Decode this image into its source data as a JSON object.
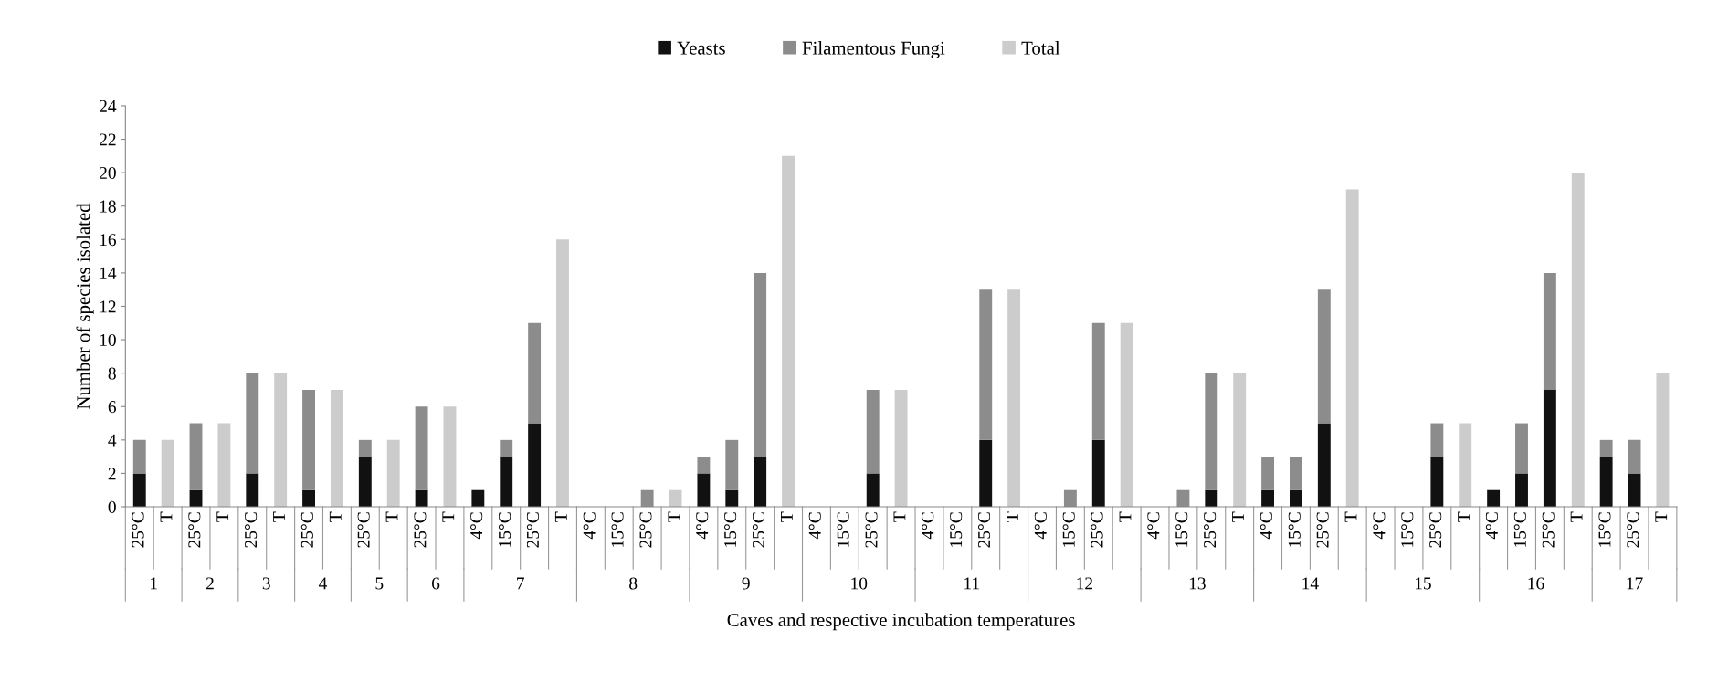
{
  "chart_data": {
    "type": "bar",
    "stacked": true,
    "ylabel": "Number of species isolated",
    "xlabel": "Caves and respective incubation temperatures",
    "categories": [
      "25°C",
      "T",
      "25°C",
      "T",
      "25°C",
      "T",
      "25°C",
      "T",
      "25°C",
      "T",
      "25°C",
      "T",
      "4°C",
      "15°C",
      "25°C",
      "T",
      "4°C",
      "15°C",
      "25°C",
      "T",
      "4°C",
      "15°C",
      "25°C",
      "T",
      "4°C",
      "15°C",
      "25°C",
      "T",
      "4°C",
      "15°C",
      "25°C",
      "T",
      "4°C",
      "15°C",
      "25°C",
      "T",
      "4°C",
      "15°C",
      "25°C",
      "T",
      "4°C",
      "15°C",
      "25°C",
      "T",
      "4°C",
      "15°C",
      "25°C",
      "T",
      "4°C",
      "15°C",
      "25°C",
      "T",
      "15°C",
      "25°C",
      "T"
    ],
    "series": [
      {
        "name": "Yeasts",
        "color": "#111111",
        "values": [
          2,
          null,
          1,
          null,
          2,
          null,
          1,
          null,
          3,
          null,
          1,
          null,
          1,
          3,
          5,
          null,
          0,
          0,
          0,
          null,
          2,
          1,
          3,
          null,
          0,
          0,
          2,
          null,
          0,
          0,
          4,
          null,
          0,
          0,
          4,
          null,
          0,
          0,
          1,
          null,
          1,
          1,
          5,
          null,
          0,
          0,
          3,
          null,
          1,
          2,
          7,
          null,
          3,
          2,
          null
        ]
      },
      {
        "name": "Filamentous Fungi",
        "color": "#8c8c8c",
        "values": [
          2,
          null,
          4,
          null,
          6,
          null,
          6,
          null,
          1,
          null,
          5,
          null,
          0,
          1,
          6,
          null,
          0,
          0,
          1,
          null,
          1,
          3,
          11,
          null,
          0,
          0,
          5,
          null,
          0,
          0,
          9,
          null,
          0,
          1,
          7,
          null,
          0,
          1,
          7,
          null,
          2,
          2,
          8,
          null,
          0,
          0,
          2,
          null,
          0,
          3,
          7,
          null,
          1,
          2,
          null
        ]
      },
      {
        "name": "Total",
        "color": "#cccccc",
        "values": [
          null,
          4,
          null,
          5,
          null,
          8,
          null,
          7,
          null,
          4,
          null,
          6,
          null,
          null,
          null,
          16,
          null,
          null,
          null,
          1,
          null,
          null,
          null,
          21,
          null,
          null,
          null,
          7,
          null,
          null,
          null,
          13,
          null,
          null,
          null,
          11,
          null,
          null,
          null,
          8,
          null,
          null,
          null,
          19,
          null,
          null,
          null,
          5,
          null,
          null,
          null,
          20,
          null,
          null,
          8
        ]
      }
    ],
    "annotations": [
      "1",
      "2",
      "3",
      "4",
      "5",
      "6",
      "7",
      "8",
      "9",
      "10",
      "11",
      "12",
      "13",
      "14",
      "15",
      "16",
      "17"
    ],
    "ylim": [
      0,
      24
    ],
    "yticks": [
      0,
      2,
      4,
      6,
      8,
      10,
      12,
      14,
      16,
      18,
      20,
      22,
      24
    ],
    "grid": false,
    "legend": "top"
  }
}
